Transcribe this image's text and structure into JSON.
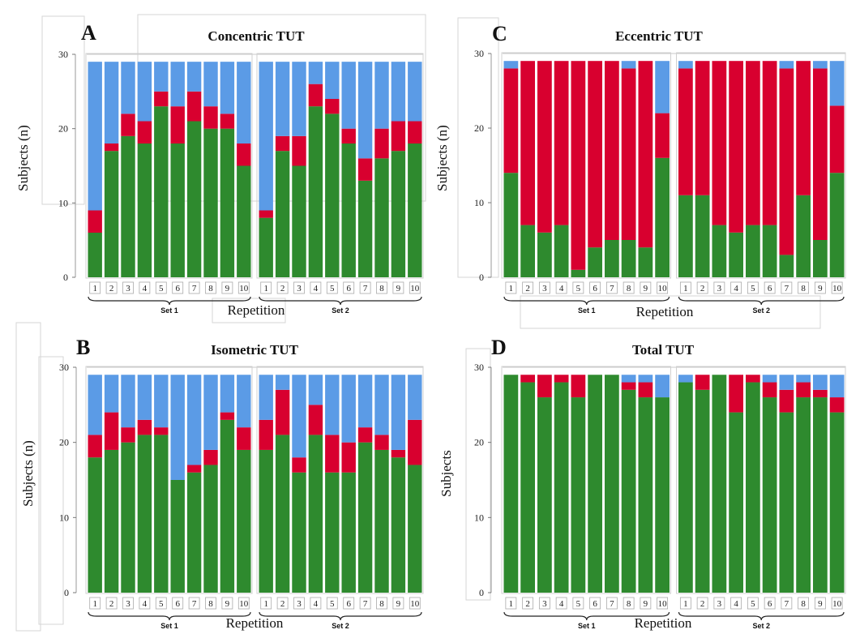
{
  "colors": {
    "green": "#2e8a2e",
    "red": "#d8002f",
    "blue": "#5b9be6"
  },
  "chart_data": [
    {
      "letter": "A",
      "title": "Concentric TUT",
      "type": "bar",
      "stacked": true,
      "ylabel": "Subjects (n)",
      "xlabel": "Repetition",
      "ylim": [
        0,
        30
      ],
      "yticks": [
        0,
        10,
        20,
        30
      ],
      "total": 29,
      "categories": [
        "1",
        "2",
        "3",
        "4",
        "5",
        "6",
        "7",
        "8",
        "9",
        "10"
      ],
      "groups": [
        "Set 1",
        "Set 2"
      ],
      "series": [
        {
          "color": "green",
          "values": [
            [
              6,
              17,
              19,
              18,
              23,
              18,
              21,
              20,
              20,
              15
            ],
            [
              8,
              17,
              15,
              23,
              22,
              18,
              13,
              16,
              17,
              18
            ]
          ]
        },
        {
          "color": "red",
          "values": [
            [
              3,
              1,
              3,
              3,
              2,
              5,
              4,
              3,
              2,
              3
            ],
            [
              1,
              2,
              4,
              3,
              2,
              2,
              3,
              4,
              4,
              3
            ]
          ]
        },
        {
          "color": "blue",
          "values": [
            [
              20,
              11,
              7,
              8,
              4,
              6,
              4,
              6,
              7,
              11
            ],
            [
              20,
              10,
              10,
              3,
              5,
              9,
              13,
              9,
              8,
              8
            ]
          ]
        }
      ]
    },
    {
      "letter": "B",
      "title": "Isometric TUT",
      "type": "bar",
      "stacked": true,
      "ylabel": "Subjects (n)",
      "xlabel": "Repetition",
      "ylim": [
        0,
        30
      ],
      "yticks": [
        0,
        10,
        20,
        30
      ],
      "total": 29,
      "categories": [
        "1",
        "2",
        "3",
        "4",
        "5",
        "6",
        "7",
        "8",
        "9",
        "10"
      ],
      "groups": [
        "Set 1",
        "Set 2"
      ],
      "series": [
        {
          "color": "green",
          "values": [
            [
              18,
              19,
              20,
              21,
              21,
              15,
              16,
              17,
              23,
              19
            ],
            [
              19,
              21,
              16,
              21,
              16,
              16,
              20,
              19,
              18,
              17
            ]
          ]
        },
        {
          "color": "red",
          "values": [
            [
              3,
              5,
              2,
              2,
              1,
              0,
              1,
              2,
              1,
              3
            ],
            [
              4,
              6,
              2,
              4,
              5,
              4,
              2,
              2,
              1,
              6
            ]
          ]
        },
        {
          "color": "blue",
          "values": [
            [
              8,
              5,
              7,
              6,
              7,
              14,
              12,
              10,
              5,
              7
            ],
            [
              6,
              2,
              11,
              4,
              8,
              9,
              7,
              8,
              10,
              6
            ]
          ]
        }
      ]
    },
    {
      "letter": "C",
      "title": "Eccentric TUT",
      "type": "bar",
      "stacked": true,
      "ylabel": "Subjects (n)",
      "xlabel": "Repetition",
      "ylim": [
        0,
        30
      ],
      "yticks": [
        0,
        10,
        20,
        30
      ],
      "total": 29,
      "categories": [
        "1",
        "2",
        "3",
        "4",
        "5",
        "6",
        "7",
        "8",
        "9",
        "10"
      ],
      "groups": [
        "Set 1",
        "Set 2"
      ],
      "series": [
        {
          "color": "green",
          "values": [
            [
              14,
              7,
              6,
              7,
              1,
              4,
              5,
              5,
              4,
              16
            ],
            [
              11,
              11,
              7,
              6,
              7,
              7,
              3,
              11,
              5,
              14
            ]
          ]
        },
        {
          "color": "red",
          "values": [
            [
              14,
              22,
              23,
              22,
              28,
              25,
              24,
              23,
              25,
              6
            ],
            [
              17,
              18,
              22,
              23,
              22,
              22,
              25,
              18,
              23,
              9
            ]
          ]
        },
        {
          "color": "blue",
          "values": [
            [
              1,
              0,
              0,
              0,
              0,
              0,
              0,
              1,
              0,
              7
            ],
            [
              1,
              0,
              0,
              0,
              0,
              0,
              1,
              0,
              1,
              6
            ]
          ]
        }
      ]
    },
    {
      "letter": "D",
      "title": "Total TUT",
      "type": "bar",
      "stacked": true,
      "ylabel": "Subjects",
      "xlabel": "Repetition",
      "ylim": [
        0,
        30
      ],
      "yticks": [
        0,
        10,
        20,
        30
      ],
      "total": 29,
      "categories": [
        "1",
        "2",
        "3",
        "4",
        "5",
        "6",
        "7",
        "8",
        "9",
        "10"
      ],
      "groups": [
        "Set 1",
        "Set 2"
      ],
      "series": [
        {
          "color": "green",
          "values": [
            [
              29,
              28,
              26,
              28,
              26,
              29,
              29,
              27,
              26,
              26
            ],
            [
              28,
              27,
              29,
              24,
              28,
              26,
              24,
              26,
              26,
              24
            ]
          ]
        },
        {
          "color": "red",
          "values": [
            [
              0,
              1,
              3,
              1,
              3,
              0,
              0,
              1,
              2,
              0
            ],
            [
              0,
              2,
              0,
              5,
              1,
              2,
              3,
              2,
              1,
              2
            ]
          ]
        },
        {
          "color": "blue",
          "values": [
            [
              0,
              0,
              0,
              0,
              0,
              0,
              0,
              1,
              1,
              3
            ],
            [
              1,
              0,
              0,
              0,
              0,
              1,
              2,
              1,
              2,
              3
            ]
          ]
        }
      ]
    }
  ]
}
